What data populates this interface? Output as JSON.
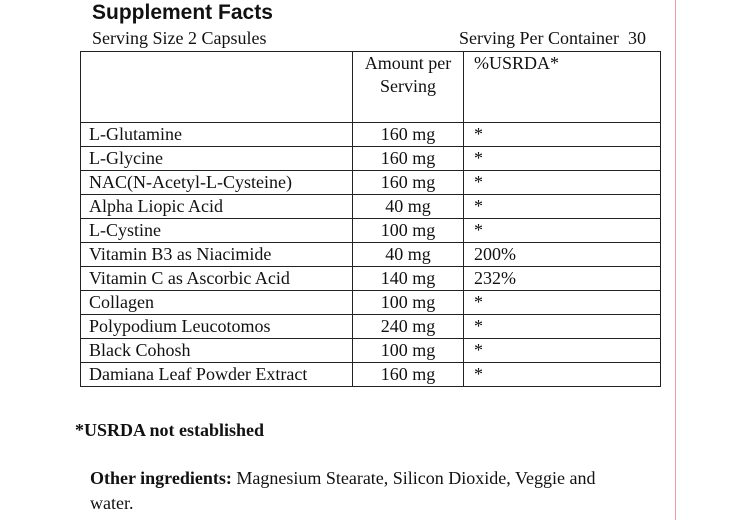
{
  "header": {
    "title": "Supplement Facts",
    "serving_size": "Serving Size 2 Capsules",
    "servings_per_container": "Serving Per Container  30"
  },
  "table": {
    "columns": [
      "Amount per Serving",
      "%USRDA*"
    ],
    "rows": [
      [
        "L-Glutamine",
        "160 mg",
        "*"
      ],
      [
        "L-Glycine",
        "160 mg",
        "*"
      ],
      [
        "NAC(N-Acetyl-L-Cysteine)",
        "160 mg",
        "*"
      ],
      [
        "Alpha Liopic Acid",
        "40 mg",
        "*"
      ],
      [
        "L-Cystine",
        "100 mg",
        "*"
      ],
      [
        "Vitamin B3 as Niacimide",
        "40 mg",
        "200%"
      ],
      [
        "Vitamin C as Ascorbic Acid",
        "140 mg",
        "232%"
      ],
      [
        "Collagen",
        "100 mg",
        "*"
      ],
      [
        "Polypodium Leucotomos",
        "240 mg",
        "*"
      ],
      [
        "Black Cohosh",
        "100 mg",
        "*"
      ],
      [
        "Damiana Leaf Powder Extract",
        "160 mg",
        "*"
      ]
    ]
  },
  "footnote": "*USRDA not established",
  "other_ingredients": {
    "label": "Other ingredients:",
    "text": "Magnesium Stearate, Silicon Dioxide, Veggie and water."
  }
}
